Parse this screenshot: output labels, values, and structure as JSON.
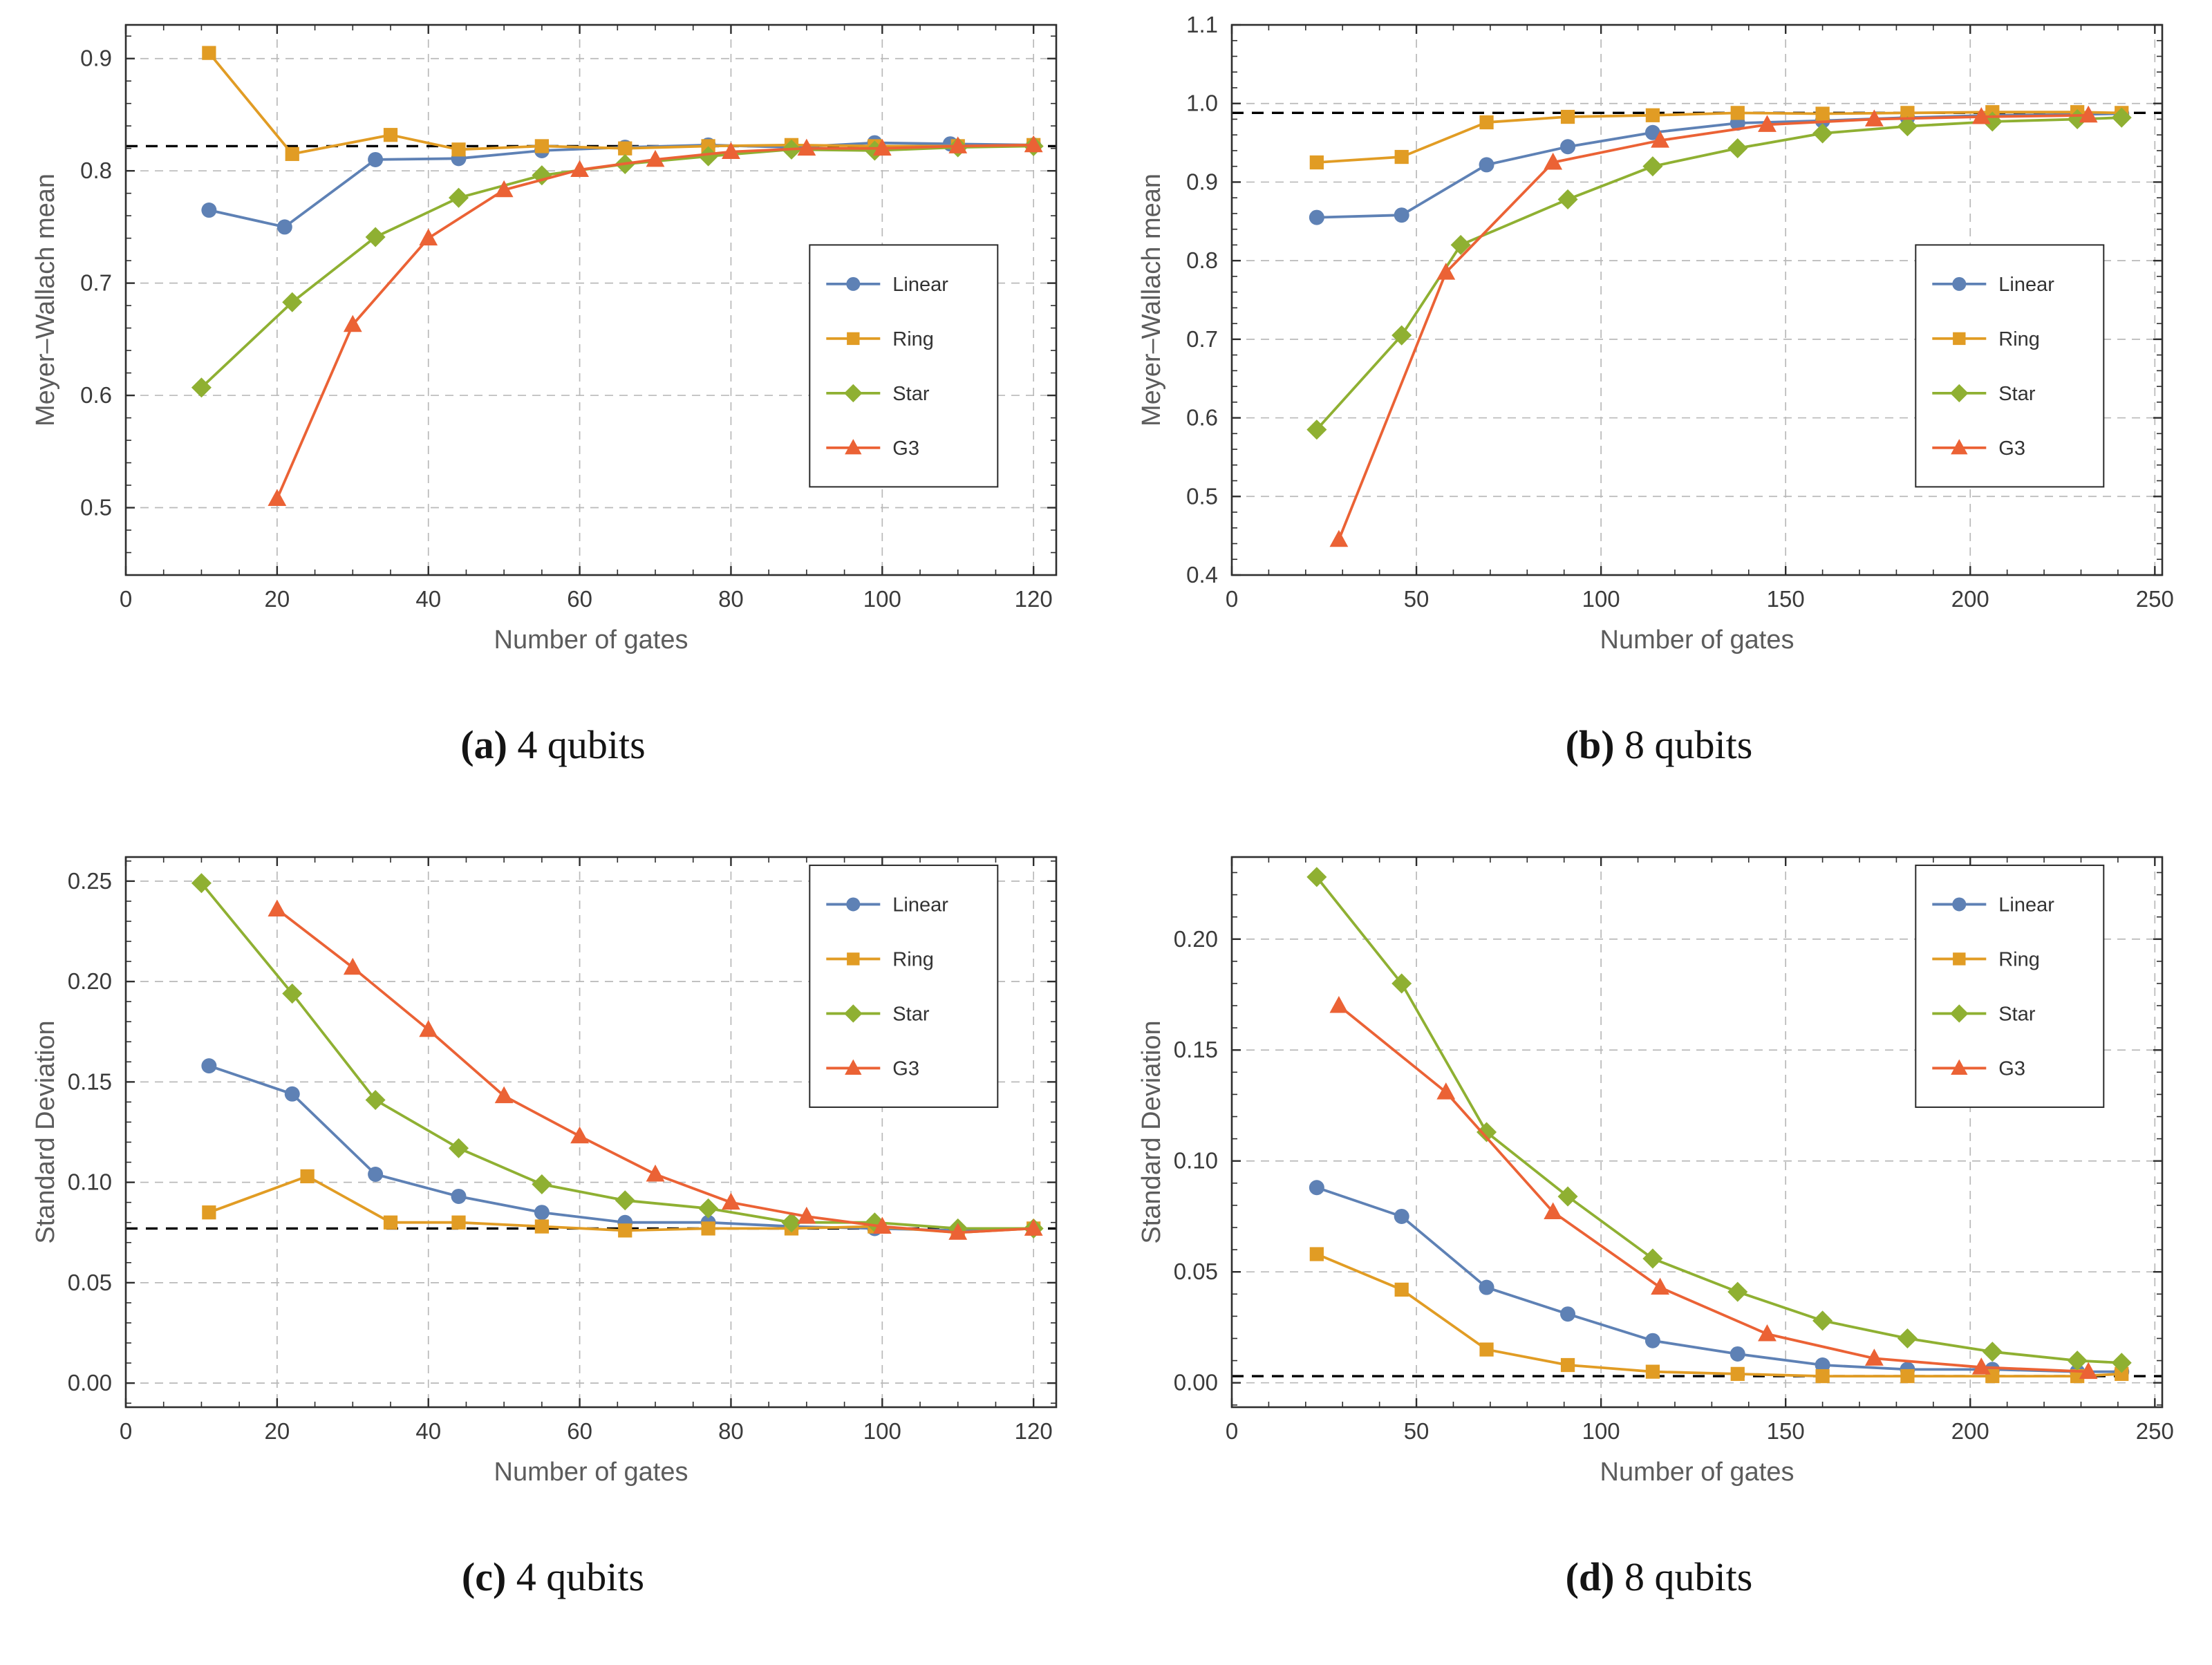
{
  "figure": {
    "captions": [
      {
        "bold": "(a)",
        "text": " 4 qubits"
      },
      {
        "bold": "(b)",
        "text": " 8 qubits"
      },
      {
        "bold": "(c)",
        "text": " 4 qubits"
      },
      {
        "bold": "(d)",
        "text": " 8 qubits"
      }
    ]
  },
  "style": {
    "frame_color": "#2e2e2e",
    "grid_color": "#b9b9b9",
    "reference_color": "#000000",
    "tick_label_color": "#3b3b3b",
    "axis_label_color": "#5c5c5c",
    "legend_text_color": "#333333",
    "series_palette": {
      "Linear": "#5e81b5",
      "Ring": "#e19c24",
      "Star": "#8fb032",
      "G3": "#eb6235"
    }
  },
  "chart_data": [
    {
      "type": "line",
      "title": "",
      "xlabel": "Number of gates",
      "ylabel": "Meyer–Wallach mean",
      "xlim": [
        0,
        123
      ],
      "ylim": [
        0.44,
        0.93
      ],
      "xticks": [
        0,
        20,
        40,
        60,
        80,
        100,
        120
      ],
      "yticks": [
        0.5,
        0.6,
        0.7,
        0.8,
        0.9
      ],
      "xminor": 5,
      "yminor": 0.02,
      "xdec": 0,
      "ydec": 1,
      "grid": true,
      "reference_line": 0.822,
      "legend": {
        "position": "right-middle",
        "x": 0.735,
        "y": 0.4
      },
      "series": [
        {
          "name": "Linear",
          "marker": "circle",
          "color": "#5e81b5",
          "points": [
            [
              11,
              0.765
            ],
            [
              21,
              0.75
            ],
            [
              33,
              0.81
            ],
            [
              44,
              0.811
            ],
            [
              55,
              0.818
            ],
            [
              66,
              0.821
            ],
            [
              77,
              0.823
            ],
            [
              88,
              0.821
            ],
            [
              99,
              0.825
            ],
            [
              109,
              0.824
            ],
            [
              120,
              0.823
            ]
          ]
        },
        {
          "name": "Ring",
          "marker": "square",
          "color": "#e19c24",
          "points": [
            [
              11,
              0.905
            ],
            [
              22,
              0.815
            ],
            [
              35,
              0.832
            ],
            [
              44,
              0.819
            ],
            [
              55,
              0.822
            ],
            [
              66,
              0.82
            ],
            [
              77,
              0.822
            ],
            [
              88,
              0.823
            ],
            [
              99,
              0.822
            ],
            [
              110,
              0.822
            ],
            [
              120,
              0.823
            ]
          ]
        },
        {
          "name": "Star",
          "marker": "diamond",
          "color": "#8fb032",
          "points": [
            [
              10,
              0.607
            ],
            [
              22,
              0.683
            ],
            [
              33,
              0.741
            ],
            [
              44,
              0.776
            ],
            [
              55,
              0.796
            ],
            [
              66,
              0.806
            ],
            [
              77,
              0.813
            ],
            [
              88,
              0.819
            ],
            [
              99,
              0.818
            ],
            [
              110,
              0.821
            ],
            [
              120,
              0.822
            ]
          ]
        },
        {
          "name": "G3",
          "marker": "triangle",
          "color": "#eb6235",
          "points": [
            [
              20,
              0.508
            ],
            [
              30,
              0.663
            ],
            [
              40,
              0.74
            ],
            [
              50,
              0.783
            ],
            [
              60,
              0.801
            ],
            [
              70,
              0.81
            ],
            [
              80,
              0.817
            ],
            [
              90,
              0.82
            ],
            [
              100,
              0.82
            ],
            [
              110,
              0.822
            ],
            [
              120,
              0.823
            ]
          ]
        }
      ]
    },
    {
      "type": "line",
      "title": "",
      "xlabel": "Number of gates",
      "ylabel": "Meyer–Wallach mean",
      "xlim": [
        0,
        252
      ],
      "ylim": [
        0.4,
        1.1
      ],
      "xticks": [
        0,
        50,
        100,
        150,
        200,
        250
      ],
      "yticks": [
        0.4,
        0.5,
        0.6,
        0.7,
        0.8,
        0.9,
        1.0,
        1.1
      ],
      "xminor": 10,
      "yminor": 0.02,
      "xdec": 0,
      "ydec": 1,
      "grid": true,
      "reference_line": 0.988,
      "legend": {
        "position": "right-middle",
        "x": 0.735,
        "y": 0.4
      },
      "series": [
        {
          "name": "Linear",
          "marker": "circle",
          "color": "#5e81b5",
          "points": [
            [
              23,
              0.855
            ],
            [
              46,
              0.858
            ],
            [
              69,
              0.922
            ],
            [
              91,
              0.945
            ],
            [
              114,
              0.963
            ],
            [
              137,
              0.975
            ],
            [
              160,
              0.978
            ],
            [
              183,
              0.982
            ],
            [
              206,
              0.985
            ],
            [
              229,
              0.986
            ],
            [
              241,
              0.987
            ]
          ]
        },
        {
          "name": "Ring",
          "marker": "square",
          "color": "#e19c24",
          "points": [
            [
              23,
              0.925
            ],
            [
              46,
              0.932
            ],
            [
              69,
              0.976
            ],
            [
              91,
              0.983
            ],
            [
              114,
              0.985
            ],
            [
              137,
              0.988
            ],
            [
              160,
              0.987
            ],
            [
              183,
              0.988
            ],
            [
              206,
              0.989
            ],
            [
              229,
              0.989
            ],
            [
              241,
              0.988
            ]
          ]
        },
        {
          "name": "Star",
          "marker": "diamond",
          "color": "#8fb032",
          "points": [
            [
              23,
              0.585
            ],
            [
              46,
              0.705
            ],
            [
              62,
              0.82
            ],
            [
              91,
              0.878
            ],
            [
              114,
              0.92
            ],
            [
              137,
              0.943
            ],
            [
              160,
              0.962
            ],
            [
              183,
              0.971
            ],
            [
              206,
              0.977
            ],
            [
              229,
              0.98
            ],
            [
              241,
              0.982
            ]
          ]
        },
        {
          "name": "G3",
          "marker": "triangle",
          "color": "#eb6235",
          "points": [
            [
              29,
              0.445
            ],
            [
              58,
              0.785
            ],
            [
              87,
              0.925
            ],
            [
              116,
              0.953
            ],
            [
              145,
              0.973
            ],
            [
              174,
              0.98
            ],
            [
              203,
              0.983
            ],
            [
              232,
              0.985
            ]
          ]
        }
      ]
    },
    {
      "type": "line",
      "title": "",
      "xlabel": "Number of gates",
      "ylabel": "Standard Deviation",
      "xlim": [
        0,
        123
      ],
      "ylim": [
        -0.012,
        0.262
      ],
      "xticks": [
        0,
        20,
        40,
        60,
        80,
        100,
        120
      ],
      "yticks": [
        0,
        0.05,
        0.1,
        0.15,
        0.2,
        0.25
      ],
      "xminor": 5,
      "yminor": 0.01,
      "xdec": 0,
      "ydec": 2,
      "grid": true,
      "reference_line": 0.077,
      "legend": {
        "position": "top-right",
        "x": 0.735,
        "y": 0.015
      },
      "series": [
        {
          "name": "Linear",
          "marker": "circle",
          "color": "#5e81b5",
          "points": [
            [
              11,
              0.158
            ],
            [
              22,
              0.144
            ],
            [
              33,
              0.104
            ],
            [
              44,
              0.093
            ],
            [
              55,
              0.085
            ],
            [
              66,
              0.08
            ],
            [
              77,
              0.08
            ],
            [
              88,
              0.078
            ],
            [
              99,
              0.077
            ],
            [
              110,
              0.076
            ],
            [
              120,
              0.077
            ]
          ]
        },
        {
          "name": "Ring",
          "marker": "square",
          "color": "#e19c24",
          "points": [
            [
              11,
              0.085
            ],
            [
              24,
              0.103
            ],
            [
              35,
              0.08
            ],
            [
              44,
              0.08
            ],
            [
              55,
              0.078
            ],
            [
              66,
              0.076
            ],
            [
              77,
              0.077
            ],
            [
              88,
              0.077
            ],
            [
              99,
              0.078
            ],
            [
              110,
              0.075
            ],
            [
              120,
              0.077
            ]
          ]
        },
        {
          "name": "Star",
          "marker": "diamond",
          "color": "#8fb032",
          "points": [
            [
              10,
              0.249
            ],
            [
              22,
              0.194
            ],
            [
              33,
              0.141
            ],
            [
              44,
              0.117
            ],
            [
              55,
              0.099
            ],
            [
              66,
              0.091
            ],
            [
              77,
              0.087
            ],
            [
              88,
              0.08
            ],
            [
              99,
              0.08
            ],
            [
              110,
              0.077
            ],
            [
              120,
              0.077
            ]
          ]
        },
        {
          "name": "G3",
          "marker": "triangle",
          "color": "#eb6235",
          "points": [
            [
              20,
              0.236
            ],
            [
              30,
              0.207
            ],
            [
              40,
              0.176
            ],
            [
              50,
              0.143
            ],
            [
              60,
              0.123
            ],
            [
              70,
              0.104
            ],
            [
              80,
              0.09
            ],
            [
              90,
              0.083
            ],
            [
              100,
              0.078
            ],
            [
              110,
              0.075
            ],
            [
              120,
              0.077
            ]
          ]
        }
      ]
    },
    {
      "type": "line",
      "title": "",
      "xlabel": "Number of gates",
      "ylabel": "Standard Deviation",
      "xlim": [
        0,
        252
      ],
      "ylim": [
        -0.011,
        0.237
      ],
      "xticks": [
        0,
        50,
        100,
        150,
        200,
        250
      ],
      "yticks": [
        0,
        0.05,
        0.1,
        0.15,
        0.2
      ],
      "xminor": 10,
      "yminor": 0.01,
      "xdec": 0,
      "ydec": 2,
      "grid": true,
      "reference_line": 0.003,
      "legend": {
        "position": "top-right",
        "x": 0.735,
        "y": 0.015
      },
      "series": [
        {
          "name": "Linear",
          "marker": "circle",
          "color": "#5e81b5",
          "points": [
            [
              23,
              0.088
            ],
            [
              46,
              0.075
            ],
            [
              69,
              0.043
            ],
            [
              91,
              0.031
            ],
            [
              114,
              0.019
            ],
            [
              137,
              0.013
            ],
            [
              160,
              0.008
            ],
            [
              183,
              0.006
            ],
            [
              206,
              0.006
            ],
            [
              229,
              0.005
            ],
            [
              241,
              0.005
            ]
          ]
        },
        {
          "name": "Ring",
          "marker": "square",
          "color": "#e19c24",
          "points": [
            [
              23,
              0.058
            ],
            [
              46,
              0.042
            ],
            [
              69,
              0.015
            ],
            [
              91,
              0.008
            ],
            [
              114,
              0.005
            ],
            [
              137,
              0.004
            ],
            [
              160,
              0.003
            ],
            [
              183,
              0.003
            ],
            [
              206,
              0.003
            ],
            [
              229,
              0.003
            ],
            [
              241,
              0.004
            ]
          ]
        },
        {
          "name": "Star",
          "marker": "diamond",
          "color": "#8fb032",
          "points": [
            [
              23,
              0.228
            ],
            [
              46,
              0.18
            ],
            [
              69,
              0.113
            ],
            [
              91,
              0.084
            ],
            [
              114,
              0.056
            ],
            [
              137,
              0.041
            ],
            [
              160,
              0.028
            ],
            [
              183,
              0.02
            ],
            [
              206,
              0.014
            ],
            [
              229,
              0.01
            ],
            [
              241,
              0.009
            ]
          ]
        },
        {
          "name": "G3",
          "marker": "triangle",
          "color": "#eb6235",
          "points": [
            [
              29,
              0.17
            ],
            [
              58,
              0.131
            ],
            [
              87,
              0.077
            ],
            [
              116,
              0.043
            ],
            [
              145,
              0.022
            ],
            [
              174,
              0.011
            ],
            [
              203,
              0.007
            ],
            [
              232,
              0.005
            ]
          ]
        }
      ]
    }
  ]
}
